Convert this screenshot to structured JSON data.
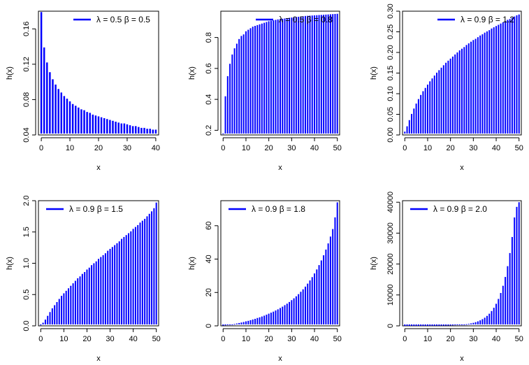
{
  "chart_data": [
    {
      "type": "bar",
      "legend": "λ = 0.5 β = 0.5",
      "legend_position": "top-right",
      "xlabel": "x",
      "ylabel": "h(x)",
      "xlim": [
        -1,
        41
      ],
      "ylim": [
        0.04,
        0.18
      ],
      "xticks": [
        0,
        10,
        20,
        30,
        40
      ],
      "yticks": [
        0.04,
        0.08,
        0.12,
        0.16
      ],
      "ytick_labels": [
        "0.04",
        "0.08",
        "0.12",
        "0.16"
      ],
      "color": "#0000ff",
      "x": [
        0,
        1,
        2,
        3,
        4,
        5,
        6,
        7,
        8,
        9,
        10,
        11,
        12,
        13,
        14,
        15,
        16,
        17,
        18,
        19,
        20,
        21,
        22,
        23,
        24,
        25,
        26,
        27,
        28,
        29,
        30,
        31,
        32,
        33,
        34,
        35,
        36,
        37,
        38,
        39,
        40
      ],
      "values": [
        0.179,
        0.139,
        0.122,
        0.111,
        0.103,
        0.097,
        0.092,
        0.088,
        0.084,
        0.081,
        0.078,
        0.075,
        0.073,
        0.071,
        0.069,
        0.068,
        0.066,
        0.065,
        0.063,
        0.062,
        0.061,
        0.06,
        0.059,
        0.058,
        0.057,
        0.056,
        0.055,
        0.054,
        0.053,
        0.053,
        0.052,
        0.051,
        0.05,
        0.05,
        0.049,
        0.048,
        0.048,
        0.047,
        0.047,
        0.046,
        0.046
      ]
    },
    {
      "type": "bar",
      "legend": "λ = 0.5 β = 0.8",
      "legend_position": "top-right",
      "xlabel": "x",
      "ylabel": "h(x)",
      "xlim": [
        -1,
        51
      ],
      "ylim": [
        0.17,
        0.97
      ],
      "xticks": [
        0,
        10,
        20,
        30,
        40,
        50
      ],
      "yticks": [
        0.2,
        0.4,
        0.6,
        0.8
      ],
      "ytick_labels": [
        "0.2",
        "0.4",
        "0.6",
        "0.8"
      ],
      "color": "#0000ff",
      "x": [
        0,
        1,
        2,
        3,
        4,
        5,
        6,
        7,
        8,
        9,
        10,
        11,
        12,
        13,
        14,
        15,
        16,
        17,
        18,
        19,
        20,
        21,
        22,
        23,
        24,
        25,
        26,
        27,
        28,
        29,
        30,
        31,
        32,
        33,
        34,
        35,
        36,
        37,
        38,
        39,
        40,
        41,
        42,
        43,
        44,
        45,
        46,
        47,
        48,
        49,
        50
      ],
      "values": [
        0.18,
        0.42,
        0.55,
        0.63,
        0.69,
        0.73,
        0.76,
        0.79,
        0.81,
        0.82,
        0.84,
        0.85,
        0.86,
        0.87,
        0.875,
        0.88,
        0.885,
        0.89,
        0.895,
        0.9,
        0.905,
        0.908,
        0.911,
        0.914,
        0.917,
        0.919,
        0.921,
        0.923,
        0.925,
        0.927,
        0.929,
        0.931,
        0.933,
        0.934,
        0.936,
        0.937,
        0.939,
        0.94,
        0.941,
        0.942,
        0.943,
        0.944,
        0.945,
        0.946,
        0.947,
        0.948,
        0.949,
        0.95,
        0.951,
        0.952,
        0.953
      ]
    },
    {
      "type": "bar",
      "legend": "λ = 0.9 β = 1.2",
      "legend_position": "top-right",
      "xlabel": "x",
      "ylabel": "h(x)",
      "xlim": [
        -1,
        51
      ],
      "ylim": [
        0,
        0.3
      ],
      "xticks": [
        0,
        10,
        20,
        30,
        40,
        50
      ],
      "yticks": [
        0,
        0.05,
        0.1,
        0.15,
        0.2,
        0.25,
        0.3
      ],
      "ytick_labels": [
        "0.00",
        "0.05",
        "0.10",
        "0.15",
        "0.20",
        "0.25",
        "0.30"
      ],
      "color": "#0000ff",
      "x": [
        0,
        1,
        2,
        3,
        4,
        5,
        6,
        7,
        8,
        9,
        10,
        11,
        12,
        13,
        14,
        15,
        16,
        17,
        18,
        19,
        20,
        21,
        22,
        23,
        24,
        25,
        26,
        27,
        28,
        29,
        30,
        31,
        32,
        33,
        34,
        35,
        36,
        37,
        38,
        39,
        40,
        41,
        42,
        43,
        44,
        45,
        46,
        47,
        48,
        49,
        50
      ],
      "values": [
        0.008,
        0.021,
        0.036,
        0.051,
        0.064,
        0.076,
        0.087,
        0.097,
        0.106,
        0.114,
        0.122,
        0.13,
        0.137,
        0.144,
        0.151,
        0.157,
        0.163,
        0.169,
        0.175,
        0.18,
        0.185,
        0.19,
        0.195,
        0.2,
        0.205,
        0.209,
        0.213,
        0.218,
        0.222,
        0.226,
        0.23,
        0.233,
        0.237,
        0.241,
        0.244,
        0.248,
        0.251,
        0.254,
        0.258,
        0.261,
        0.264,
        0.267,
        0.27,
        0.273,
        0.276,
        0.279,
        0.281,
        0.284,
        0.287,
        0.29,
        0.292
      ]
    },
    {
      "type": "bar",
      "legend": "λ = 0.9 β = 1.5",
      "legend_position": "top-left",
      "xlabel": "x",
      "ylabel": "h(x)",
      "xlim": [
        -1,
        51
      ],
      "ylim": [
        0,
        2.0
      ],
      "xticks": [
        0,
        10,
        20,
        30,
        40,
        50
      ],
      "yticks": [
        0,
        0.5,
        1.0,
        1.5,
        2.0
      ],
      "ytick_labels": [
        "0.0",
        "0.5",
        "1.0",
        "1.5",
        "2.0"
      ],
      "color": "#0000ff",
      "x": [
        0,
        1,
        2,
        3,
        4,
        5,
        6,
        7,
        8,
        9,
        10,
        11,
        12,
        13,
        14,
        15,
        16,
        17,
        18,
        19,
        20,
        21,
        22,
        23,
        24,
        25,
        26,
        27,
        28,
        29,
        30,
        31,
        32,
        33,
        34,
        35,
        36,
        37,
        38,
        39,
        40,
        41,
        42,
        43,
        44,
        45,
        46,
        47,
        48,
        49,
        50
      ],
      "values": [
        0.01,
        0.05,
        0.1,
        0.16,
        0.22,
        0.28,
        0.33,
        0.38,
        0.43,
        0.48,
        0.52,
        0.56,
        0.6,
        0.64,
        0.68,
        0.72,
        0.76,
        0.79,
        0.83,
        0.86,
        0.9,
        0.93,
        0.97,
        1.0,
        1.03,
        1.07,
        1.1,
        1.13,
        1.16,
        1.2,
        1.23,
        1.26,
        1.29,
        1.32,
        1.35,
        1.39,
        1.42,
        1.45,
        1.48,
        1.51,
        1.55,
        1.58,
        1.61,
        1.65,
        1.68,
        1.71,
        1.75,
        1.79,
        1.83,
        1.88,
        1.97
      ]
    },
    {
      "type": "bar",
      "legend": "λ = 0.9 β = 1.8",
      "legend_position": "top-left",
      "xlabel": "x",
      "ylabel": "h(x)",
      "xlim": [
        -1,
        51
      ],
      "ylim": [
        0,
        75
      ],
      "xticks": [
        0,
        10,
        20,
        30,
        40,
        50
      ],
      "yticks": [
        0,
        20,
        40,
        60
      ],
      "ytick_labels": [
        "0",
        "20",
        "40",
        "60"
      ],
      "color": "#0000ff",
      "x": [
        0,
        1,
        2,
        3,
        4,
        5,
        6,
        7,
        8,
        9,
        10,
        11,
        12,
        13,
        14,
        15,
        16,
        17,
        18,
        19,
        20,
        21,
        22,
        23,
        24,
        25,
        26,
        27,
        28,
        29,
        30,
        31,
        32,
        33,
        34,
        35,
        36,
        37,
        38,
        39,
        40,
        41,
        42,
        43,
        44,
        45,
        46,
        47,
        48,
        49,
        50
      ],
      "values": [
        0.2,
        0.3,
        0.5,
        0.7,
        0.9,
        1.1,
        1.4,
        1.7,
        2.0,
        2.3,
        2.7,
        3.0,
        3.4,
        3.8,
        4.2,
        4.7,
        5.1,
        5.6,
        6.1,
        6.7,
        7.3,
        7.9,
        8.5,
        9.2,
        9.9,
        10.7,
        11.5,
        12.4,
        13.3,
        14.3,
        15.4,
        16.5,
        17.7,
        19.0,
        20.4,
        21.9,
        23.5,
        25.3,
        27.2,
        29.2,
        31.4,
        33.8,
        36.4,
        39.2,
        42.3,
        45.7,
        49.4,
        53.5,
        58.0,
        65.0,
        74.0
      ]
    },
    {
      "type": "bar",
      "legend": "λ = 0.9 β = 2.0",
      "legend_position": "top-left",
      "xlabel": "x",
      "ylabel": "h(x)",
      "xlim": [
        -1,
        51
      ],
      "ylim": [
        0,
        40500
      ],
      "xticks": [
        0,
        10,
        20,
        30,
        40,
        50
      ],
      "yticks": [
        0,
        10000,
        20000,
        30000,
        40000
      ],
      "ytick_labels": [
        "0",
        "10000",
        "20000",
        "30000",
        "40000"
      ],
      "color": "#0000ff",
      "x": [
        0,
        1,
        2,
        3,
        4,
        5,
        6,
        7,
        8,
        9,
        10,
        11,
        12,
        13,
        14,
        15,
        16,
        17,
        18,
        19,
        20,
        21,
        22,
        23,
        24,
        25,
        26,
        27,
        28,
        29,
        30,
        31,
        32,
        33,
        34,
        35,
        36,
        37,
        38,
        39,
        40,
        41,
        42,
        43,
        44,
        45,
        46,
        47,
        48,
        49,
        50
      ],
      "values": [
        1,
        2,
        3,
        4,
        5,
        6,
        8,
        10,
        12,
        15,
        18,
        22,
        27,
        33,
        40,
        49,
        60,
        73,
        89,
        109,
        133,
        162,
        198,
        242,
        295,
        360,
        440,
        537,
        655,
        800,
        976,
        1191,
        1453,
        1773,
        2163,
        2640,
        3221,
        3930,
        4795,
        5852,
        7140,
        8712,
        10630,
        12970,
        15825,
        19310,
        23560,
        28750,
        35080,
        38500,
        40000
      ]
    }
  ]
}
